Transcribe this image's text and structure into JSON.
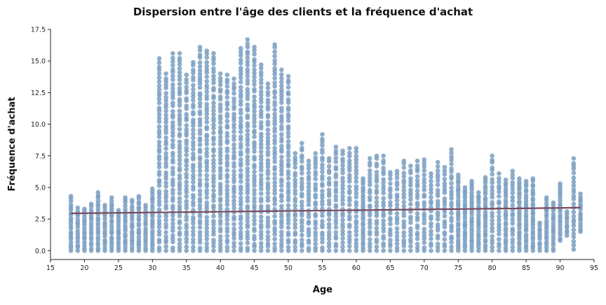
{
  "chart_data": {
    "type": "scatter",
    "title": "Dispersion entre l'âge des clients et la fréquence d'achat",
    "xlabel": "Age",
    "ylabel": "Fréquence d'achat",
    "xlim": [
      15,
      95
    ],
    "ylim": [
      -0.7,
      17.5
    ],
    "x_ticks": [
      15,
      20,
      25,
      30,
      35,
      40,
      45,
      50,
      55,
      60,
      65,
      70,
      75,
      80,
      85,
      90,
      95
    ],
    "y_ticks": [
      0.0,
      2.5,
      5.0,
      7.5,
      10.0,
      12.5,
      15.0,
      17.5
    ],
    "grid": false,
    "colors": {
      "points": "#7a9fc2",
      "trend": "#7b4a5c"
    },
    "series": [
      {
        "kind": "points",
        "columns_age_min_max": [
          [
            18,
            0.0,
            4.3
          ],
          [
            19,
            0.0,
            3.4
          ],
          [
            20,
            0.0,
            3.3
          ],
          [
            21,
            0.0,
            3.7
          ],
          [
            22,
            0.0,
            4.6
          ],
          [
            23,
            0.0,
            3.6
          ],
          [
            24,
            0.0,
            4.2
          ],
          [
            25,
            0.0,
            3.2
          ],
          [
            26,
            0.0,
            4.2
          ],
          [
            27,
            0.0,
            4.0
          ],
          [
            28,
            0.0,
            4.3
          ],
          [
            29,
            0.0,
            3.6
          ],
          [
            30,
            0.0,
            4.9
          ],
          [
            31,
            0.0,
            15.2
          ],
          [
            32,
            0.0,
            14.0
          ],
          [
            33,
            0.0,
            15.6
          ],
          [
            34,
            0.0,
            15.6
          ],
          [
            35,
            0.0,
            13.9
          ],
          [
            36,
            0.0,
            14.9
          ],
          [
            37,
            0.0,
            16.1
          ],
          [
            38,
            0.0,
            15.8
          ],
          [
            39,
            0.0,
            15.6
          ],
          [
            40,
            0.0,
            14.0
          ],
          [
            41,
            0.0,
            13.9
          ],
          [
            42,
            0.0,
            13.6
          ],
          [
            43,
            0.0,
            16.0
          ],
          [
            44,
            0.0,
            16.7
          ],
          [
            45,
            0.0,
            16.1
          ],
          [
            46,
            0.0,
            14.7
          ],
          [
            47,
            0.0,
            13.2
          ],
          [
            48,
            0.0,
            16.3
          ],
          [
            49,
            0.0,
            14.3
          ],
          [
            50,
            0.0,
            13.8
          ],
          [
            51,
            0.0,
            7.7
          ],
          [
            52,
            0.0,
            8.5
          ],
          [
            53,
            0.0,
            7.1
          ],
          [
            54,
            0.0,
            7.7
          ],
          [
            55,
            0.0,
            9.2
          ],
          [
            56,
            0.0,
            7.3
          ],
          [
            57,
            0.0,
            8.2
          ],
          [
            58,
            0.0,
            7.9
          ],
          [
            59,
            0.0,
            8.1
          ],
          [
            60,
            0.0,
            8.1
          ],
          [
            61,
            0.0,
            5.7
          ],
          [
            62,
            0.0,
            7.3
          ],
          [
            63,
            0.0,
            7.5
          ],
          [
            64,
            0.0,
            7.5
          ],
          [
            65,
            0.0,
            6.2
          ],
          [
            66,
            0.0,
            6.3
          ],
          [
            67,
            0.0,
            7.1
          ],
          [
            68,
            0.0,
            6.7
          ],
          [
            69,
            0.0,
            7.1
          ],
          [
            70,
            0.0,
            7.2
          ],
          [
            71,
            0.0,
            6.1
          ],
          [
            72,
            0.0,
            7.0
          ],
          [
            73,
            0.0,
            6.6
          ],
          [
            74,
            0.0,
            8.0
          ],
          [
            75,
            0.0,
            6.0
          ],
          [
            76,
            0.0,
            5.0
          ],
          [
            77,
            0.0,
            5.5
          ],
          [
            78,
            0.0,
            4.6
          ],
          [
            79,
            0.0,
            5.8
          ],
          [
            80,
            0.0,
            7.5
          ],
          [
            81,
            0.0,
            6.1
          ],
          [
            82,
            0.0,
            5.6
          ],
          [
            83,
            0.0,
            6.3
          ],
          [
            84,
            0.0,
            5.7
          ],
          [
            85,
            0.0,
            5.5
          ],
          [
            86,
            0.0,
            5.7
          ],
          [
            87,
            0.0,
            2.2
          ],
          [
            88,
            0.0,
            4.2
          ],
          [
            89,
            0.0,
            3.8
          ],
          [
            90,
            0.8,
            5.3
          ],
          [
            91,
            1.2,
            3.1
          ],
          [
            92,
            0.1,
            7.3
          ],
          [
            93,
            1.5,
            4.5
          ]
        ]
      },
      {
        "kind": "trend",
        "x": [
          18,
          93
        ],
        "y": [
          2.95,
          3.4
        ]
      }
    ]
  }
}
